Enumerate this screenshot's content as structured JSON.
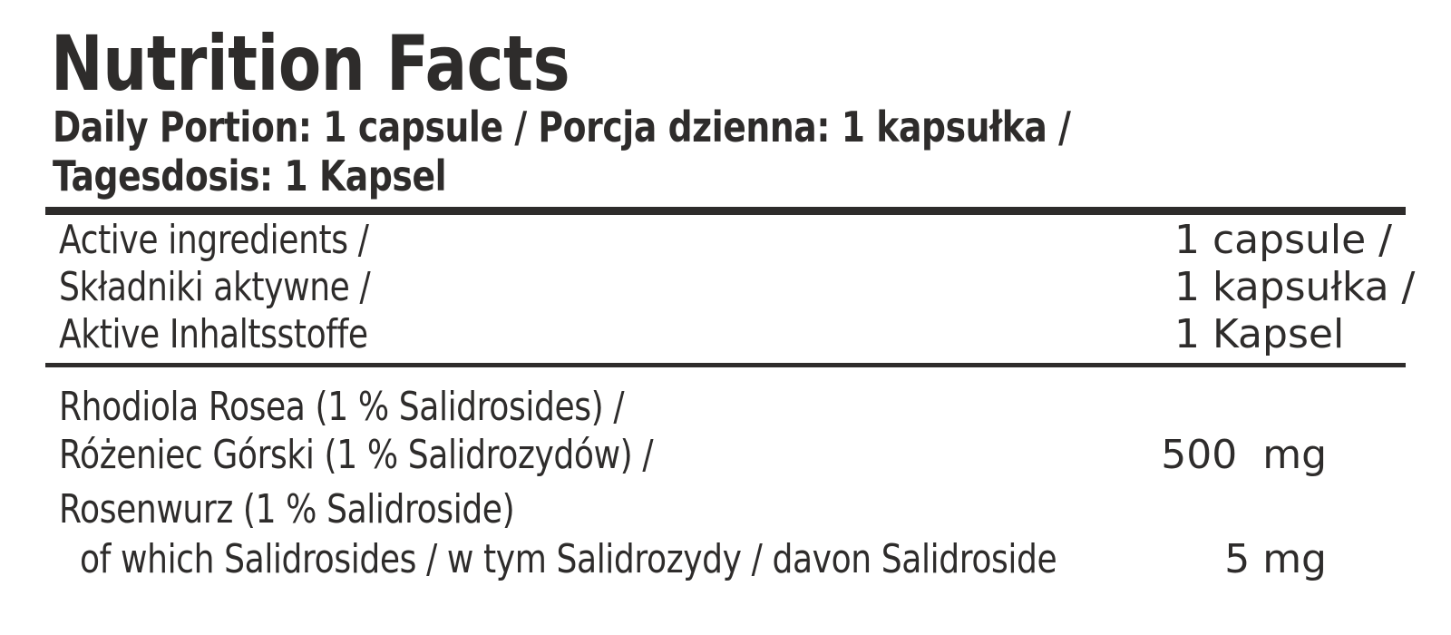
{
  "colors": {
    "text": "#2e2c2b",
    "background": "#ffffff",
    "rule": "#2e2c2b"
  },
  "header": {
    "title": "Nutrition Facts",
    "portion_lines": [
      "Daily Portion: 1 capsule / Porcja dzienna: 1 kapsułka /",
      "Tagesdosis: 1 Kapsel"
    ]
  },
  "columns_header": {
    "rows": [
      {
        "label": "Active ingredients /",
        "value": "1 capsule /"
      },
      {
        "label": "Składniki aktywne /",
        "value": "1 kapsułka /"
      },
      {
        "label": "Aktive Inhaltsstoffe",
        "value": "1 Kapsel"
      }
    ]
  },
  "ingredients": [
    {
      "name_lines": [
        "Rhodiola Rosea (1 % Salidrosides) /",
        "Różeniec Górski (1 % Salidrozydów) /",
        "Rosenwurz (1 % Salidroside)"
      ],
      "amount": "500  mg"
    },
    {
      "name_lines": [
        "of which Salidrosides / w tym Salidrozydy / davon Salidroside"
      ],
      "amount": "5 mg"
    }
  ]
}
